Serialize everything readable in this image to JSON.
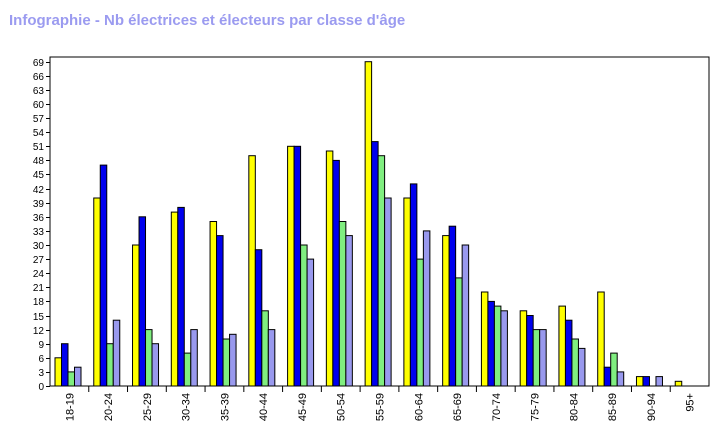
{
  "title": "Infographie - Nb électrices et électeurs par classe d'âge",
  "chart_data": {
    "type": "bar",
    "title": "Infographie - Nb électrices et électeurs par classe d'âge",
    "categories": [
      "18-19",
      "20-24",
      "25-29",
      "30-34",
      "35-39",
      "40-44",
      "45-49",
      "50-54",
      "55-59",
      "60-64",
      "65-69",
      "70-74",
      "75-79",
      "80-84",
      "85-89",
      "90-94",
      "95+"
    ],
    "series": [
      {
        "color": "#ffff00",
        "values": [
          6,
          40,
          30,
          37,
          35,
          49,
          51,
          50,
          69,
          40,
          32,
          20,
          16,
          17,
          20,
          2,
          1
        ]
      },
      {
        "color": "#0000ee",
        "values": [
          9,
          47,
          36,
          38,
          32,
          29,
          51,
          48,
          52,
          43,
          34,
          18,
          15,
          14,
          4,
          2,
          0
        ]
      },
      {
        "color": "#80ee80",
        "values": [
          3,
          9,
          12,
          7,
          10,
          16,
          30,
          35,
          49,
          27,
          23,
          17,
          12,
          10,
          7,
          0,
          0
        ]
      },
      {
        "color": "#9999ee",
        "values": [
          4,
          14,
          9,
          12,
          11,
          12,
          27,
          32,
          40,
          33,
          30,
          16,
          12,
          8,
          3,
          2,
          0
        ]
      }
    ],
    "yticks": [
      0,
      3,
      6,
      9,
      12,
      15,
      18,
      21,
      24,
      27,
      30,
      33,
      36,
      39,
      42,
      45,
      48,
      51,
      54,
      57,
      60,
      63,
      66,
      69
    ],
    "ylim": [
      0,
      70
    ],
    "grid": false,
    "legend": false
  }
}
